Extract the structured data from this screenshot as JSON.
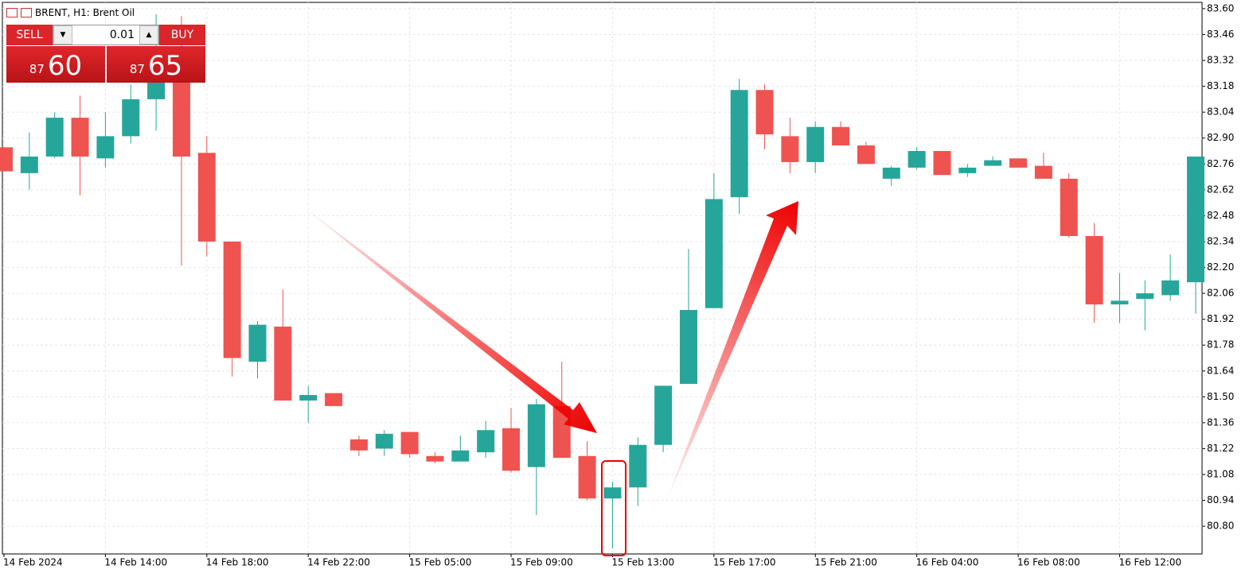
{
  "chart_data": {
    "type": "candlestick",
    "title": "BRENT, H1:  Brent Oil",
    "categories": [
      "14 Feb 2024",
      null,
      null,
      null,
      "14 Feb 14:00",
      null,
      null,
      null,
      "14 Feb 18:00",
      null,
      null,
      null,
      "14 Feb 22:00",
      null,
      null,
      null,
      "15 Feb 05:00",
      null,
      null,
      null,
      "15 Feb 09:00",
      null,
      null,
      null,
      "15 Feb 13:00",
      null,
      null,
      null,
      "15 Feb 17:00",
      null,
      null,
      null,
      "15 Feb 21:00",
      null,
      null,
      null,
      "16 Feb 04:00",
      null,
      null,
      null,
      "16 Feb 08:00",
      null,
      null,
      null,
      "16 Feb 12:00",
      null,
      null,
      null
    ],
    "open": [
      82.85,
      82.71,
      82.8,
      83.01,
      82.79,
      82.91,
      83.11,
      83.2,
      82.82,
      82.34,
      81.69,
      81.88,
      81.48,
      81.52,
      81.27,
      81.22,
      81.31,
      81.18,
      81.15,
      81.2,
      81.33,
      81.12,
      81.45,
      81.18,
      80.95,
      81.01,
      81.24,
      81.57,
      81.98,
      82.58,
      83.16,
      82.91,
      82.77,
      82.96,
      82.86,
      82.68,
      82.74,
      82.83,
      82.71,
      82.75,
      82.79,
      82.75,
      82.68,
      82.37,
      82.0,
      82.03,
      82.05,
      82.12
    ],
    "high": [
      82.85,
      82.93,
      83.04,
      83.13,
      83.04,
      83.19,
      83.57,
      83.56,
      82.91,
      82.34,
      81.91,
      82.08,
      81.56,
      81.52,
      81.29,
      81.32,
      81.31,
      81.2,
      81.29,
      81.37,
      81.44,
      81.49,
      81.69,
      81.26,
      81.04,
      81.28,
      81.56,
      82.3,
      82.71,
      83.22,
      83.19,
      83.01,
      82.99,
      82.99,
      82.88,
      82.75,
      82.85,
      82.83,
      82.76,
      82.8,
      82.79,
      82.82,
      82.71,
      82.44,
      82.17,
      82.13,
      82.27,
      82.8
    ],
    "low": [
      82.72,
      82.62,
      82.79,
      82.59,
      82.74,
      82.87,
      82.94,
      82.21,
      82.26,
      81.61,
      81.6,
      81.48,
      81.36,
      81.45,
      81.18,
      81.18,
      81.17,
      81.14,
      81.15,
      81.17,
      81.09,
      80.86,
      81.17,
      80.94,
      80.68,
      80.91,
      81.2,
      81.57,
      81.98,
      82.49,
      82.84,
      82.71,
      82.71,
      82.86,
      82.76,
      82.64,
      82.73,
      82.7,
      82.69,
      82.75,
      82.74,
      82.68,
      82.36,
      81.9,
      81.9,
      81.86,
      82.02,
      81.95
    ],
    "close": [
      82.72,
      82.8,
      83.01,
      82.8,
      82.91,
      83.11,
      83.2,
      82.8,
      82.34,
      81.71,
      81.89,
      81.48,
      81.51,
      81.45,
      81.21,
      81.3,
      81.19,
      81.15,
      81.21,
      81.32,
      81.1,
      81.46,
      81.17,
      80.95,
      81.01,
      81.24,
      81.56,
      81.97,
      82.57,
      83.16,
      82.92,
      82.77,
      82.96,
      82.86,
      82.76,
      82.74,
      82.83,
      82.7,
      82.74,
      82.78,
      82.74,
      82.68,
      82.37,
      82.0,
      82.02,
      82.06,
      82.13,
      82.8
    ],
    "up_color": "#26a69a",
    "down_color": "#ef5350",
    "ylim": [
      80.65,
      83.634
    ],
    "yticks": [
      {
        "value": 83.6,
        "label": "83.60"
      },
      83.46,
      83.32,
      83.18,
      83.04,
      {
        "value": 82.9,
        "label": "82.90"
      },
      82.76,
      82.62,
      82.48,
      82.34,
      {
        "value": 82.2,
        "label": "82.20"
      },
      82.06,
      81.92,
      81.78,
      81.64,
      {
        "value": 81.5,
        "label": "81.50"
      },
      81.36,
      81.22,
      81.08,
      80.94,
      {
        "value": 80.8,
        "label": "80.80"
      }
    ],
    "grid": true
  },
  "trade_panel": {
    "sell": "SELL",
    "buy": "BUY",
    "volume": "0.01",
    "bid_big": "87",
    "bid_small": "60",
    "ask_big": "87",
    "ask_small": "65"
  }
}
